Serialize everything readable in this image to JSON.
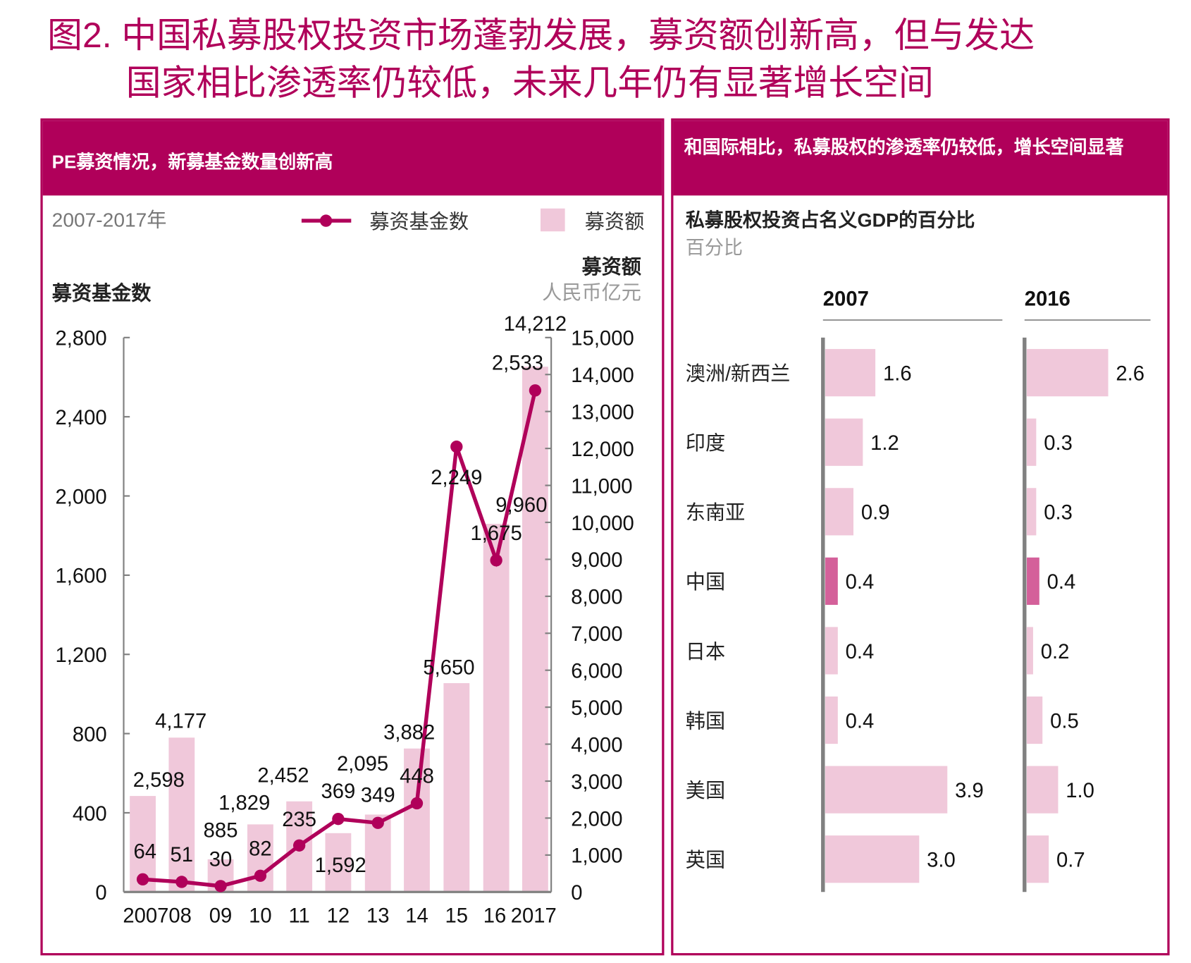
{
  "title_line1": "图2. 中国私募股权投资市场蓬勃发展，募资额创新高，但与发达",
  "title_line2": "国家相比渗透率仍较低，未来几年仍有显著增长空间",
  "colors": {
    "accent": "#b0005a",
    "bar": "#f0c8da",
    "highlight_bar": "#d4609a",
    "axis": "#808080"
  },
  "chart_data": [
    {
      "type": "bar+line",
      "panel_title": "PE募资情况，新募基金数量创新高",
      "subtitle": "2007-2017年",
      "categories": [
        "2007",
        "08",
        "09",
        "10",
        "11",
        "12",
        "13",
        "14",
        "15",
        "16",
        "2017"
      ],
      "series": [
        {
          "name": "募资基金数",
          "type": "line",
          "axis": "left",
          "values": [
            64,
            51,
            30,
            82,
            235,
            369,
            349,
            448,
            2249,
            1675,
            2533
          ]
        },
        {
          "name": "募资额",
          "type": "bar",
          "axis": "right",
          "values": [
            2598,
            4177,
            885,
            1829,
            2452,
            1592,
            2095,
            3882,
            5650,
            9960,
            14212
          ]
        }
      ],
      "left_axis": {
        "label": "募资基金数",
        "range": [
          0,
          2800
        ],
        "ticks": [
          "0",
          "400",
          "800",
          "1,200",
          "1,600",
          "2,000",
          "2,400",
          "2,800"
        ]
      },
      "right_axis": {
        "label": "募资额",
        "unit": "人民币亿元",
        "range": [
          0,
          15000
        ],
        "ticks": [
          "0",
          "1,000",
          "2,000",
          "3,000",
          "4,000",
          "5,000",
          "6,000",
          "7,000",
          "8,000",
          "9,000",
          "10,000",
          "11,000",
          "12,000",
          "13,000",
          "14,000",
          "15,000"
        ]
      },
      "line_labels": [
        "64",
        "51",
        "30",
        "82",
        "235",
        "369",
        "349",
        "448",
        "2,249",
        "1,675",
        "2,533"
      ],
      "bar_labels": [
        "2,598",
        "4,177",
        "885",
        "1,829",
        "2,452",
        "1,592",
        "2,095",
        "3,882",
        "5,650",
        "9,960",
        "14,212"
      ],
      "legend_placement": "top"
    },
    {
      "type": "bar",
      "orientation": "horizontal",
      "panel_title": "和国际相比，私募股权的渗透率仍较低，增长空间显著",
      "title": "私募股权投资占名义GDP的百分比",
      "unit": "百分比",
      "categories": [
        "澳洲/新西兰",
        "印度",
        "东南亚",
        "中国",
        "日本",
        "韩国",
        "美国",
        "英国"
      ],
      "series": [
        {
          "name": "2007",
          "values": [
            1.6,
            1.2,
            0.9,
            0.4,
            0.4,
            0.4,
            3.9,
            3.0
          ],
          "labels": [
            "1.6",
            "1.2",
            "0.9",
            "0.4",
            "0.4",
            "0.4",
            "3.9",
            "3.0"
          ]
        },
        {
          "name": "2016",
          "values": [
            2.6,
            0.3,
            0.3,
            0.4,
            0.2,
            0.5,
            1.0,
            0.7
          ],
          "labels": [
            "2.6",
            "0.3",
            "0.3",
            "0.4",
            "0.2",
            "0.5",
            "1.0",
            "0.7"
          ]
        }
      ],
      "highlight_category": "中国"
    }
  ]
}
